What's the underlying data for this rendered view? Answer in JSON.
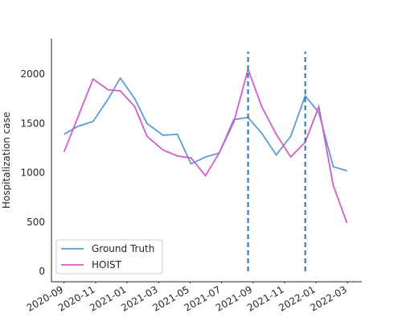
{
  "chart_data": {
    "type": "line",
    "ylabel": "Hospitalization case",
    "x": [
      0,
      0.87,
      1.84,
      2.81,
      3.57,
      4.49,
      5.26,
      6.28,
      7.19,
      8.06,
      8.98,
      9.85,
      10.77,
      11.68,
      12.55,
      13.47,
      14.39,
      15.31,
      16.17,
      17.09,
      17.96
    ],
    "series": [
      {
        "name": "Ground Truth",
        "color": "#5b9bd5",
        "values": [
          1390,
          1470,
          1520,
          1750,
          1960,
          1750,
          1500,
          1380,
          1390,
          1090,
          1160,
          1200,
          1540,
          1560,
          1400,
          1180,
          1370,
          1780,
          1610,
          1060,
          1020
        ]
      },
      {
        "name": "HOIST",
        "color": "#d55cc8",
        "values": [
          1210,
          1560,
          1950,
          1840,
          1830,
          1670,
          1370,
          1230,
          1170,
          1150,
          970,
          1200,
          1510,
          2050,
          1670,
          1390,
          1160,
          1310,
          1670,
          870,
          490
        ]
      }
    ],
    "vlines": [
      {
        "x": 11.68,
        "ymin": 0,
        "ymax": 2230,
        "color": "#1f77b4"
      },
      {
        "x": 15.31,
        "ymin": 0,
        "ymax": 2230,
        "color": "#1f77b4"
      }
    ],
    "xlim": [
      -0.8,
      18.9
    ],
    "xticks": [
      {
        "value": 0,
        "label": "2020-09"
      },
      {
        "value": 2,
        "label": "2020-11"
      },
      {
        "value": 4,
        "label": "2021-01"
      },
      {
        "value": 6,
        "label": "2021-03"
      },
      {
        "value": 8,
        "label": "2021-05"
      },
      {
        "value": 10,
        "label": "2021-07"
      },
      {
        "value": 12,
        "label": "2021-09"
      },
      {
        "value": 14,
        "label": "2021-11"
      },
      {
        "value": 16,
        "label": "2022-01"
      },
      {
        "value": 18,
        "label": "2022-03"
      }
    ],
    "ylim": [
      -106,
      2360
    ],
    "yticks": [
      0,
      500,
      1000,
      1500,
      2000
    ],
    "legend": "lower left"
  }
}
